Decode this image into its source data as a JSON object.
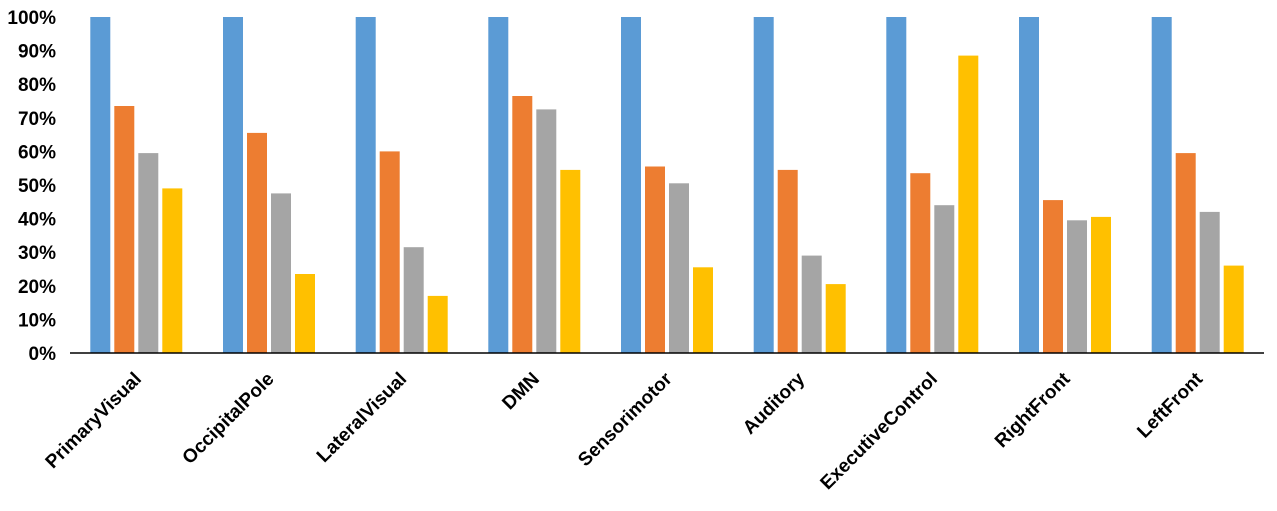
{
  "chart_data": {
    "type": "bar",
    "categories": [
      "PrimaryVisual",
      "OccipitalPole",
      "LateralVisual",
      "DMN",
      "Sensorimotor",
      "Auditory",
      "ExecutiveControl",
      "RightFront",
      "LeftFront"
    ],
    "series": [
      {
        "color": "#5B9BD5",
        "values": [
          100,
          100,
          100,
          100,
          100,
          100,
          100,
          100,
          100
        ]
      },
      {
        "color": "#ED7D31",
        "values": [
          73.5,
          65.5,
          60,
          76.5,
          55.5,
          54.5,
          53.5,
          45.5,
          59.5
        ]
      },
      {
        "color": "#A5A5A5",
        "values": [
          59.5,
          47.5,
          31.5,
          72.5,
          50.5,
          29,
          44,
          39.5,
          42
        ]
      },
      {
        "color": "#FFC000",
        "values": [
          49,
          23.5,
          17,
          54.5,
          25.5,
          20.5,
          88.5,
          40.5,
          26
        ]
      }
    ],
    "yticks": [
      "0%",
      "10%",
      "20%",
      "30%",
      "40%",
      "50%",
      "60%",
      "70%",
      "80%",
      "90%",
      "100%"
    ],
    "ylim": [
      0,
      100
    ],
    "grid": false,
    "legend": "none"
  }
}
